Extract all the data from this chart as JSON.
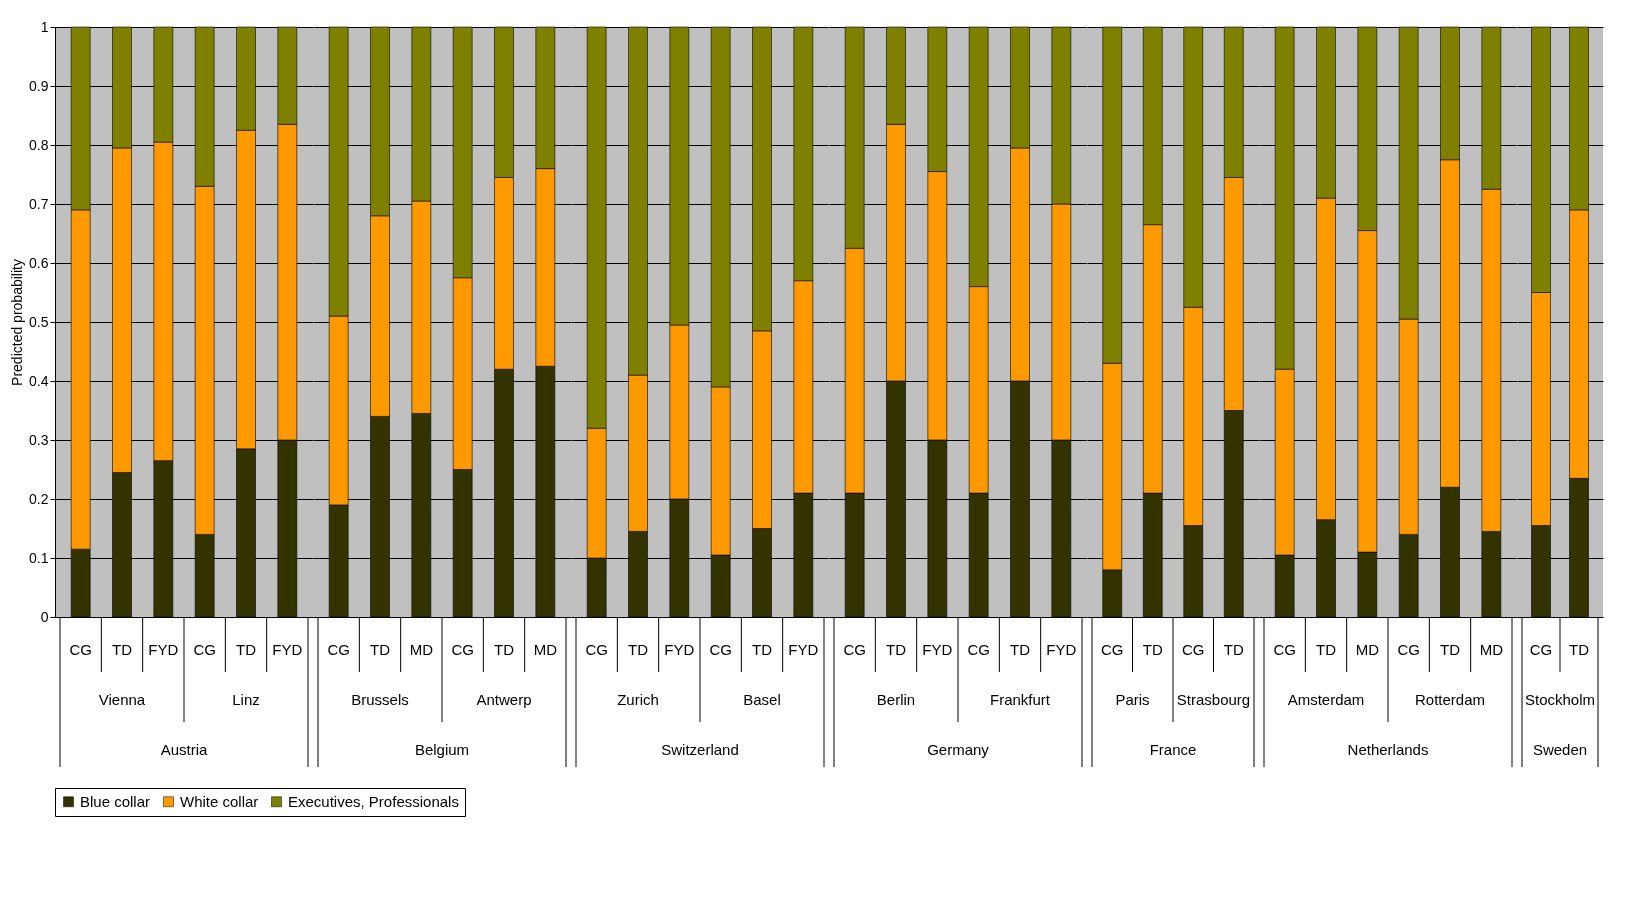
{
  "chart_data": [
    {
      "type": "bar",
      "stacked": true,
      "ylabel": "Predicted probability",
      "xlabel": "Austria",
      "annotations": [
        "Vienna",
        "Linz"
      ],
      "categories": [
        "CG",
        "TD",
        "FYD",
        "CG",
        "TD",
        "FYD"
      ],
      "ylim": [
        0,
        1
      ],
      "yticks": [
        0,
        0.1,
        0.2,
        0.3,
        0.4,
        0.5,
        0.6,
        0.7,
        0.8,
        0.9,
        1
      ],
      "grid": "y",
      "legend": "bottom",
      "series": [
        {
          "name": "Blue collar",
          "color": "#333300",
          "values": [
            0.115,
            0.245,
            0.265,
            0.14,
            0.285,
            0.3
          ]
        },
        {
          "name": "White collar",
          "color": "#ff9900",
          "values": [
            0.575,
            0.55,
            0.54,
            0.59,
            0.54,
            0.535
          ]
        },
        {
          "name": "Executives, Professionals",
          "color": "#808000",
          "values": [
            0.31,
            0.205,
            0.195,
            0.27,
            0.175,
            0.165
          ]
        }
      ]
    },
    {
      "type": "bar",
      "stacked": true,
      "xlabel": "Belgium",
      "annotations": [
        "Brussels",
        "Antwerp"
      ],
      "categories": [
        "CG",
        "TD",
        "MD",
        "CG",
        "TD",
        "MD"
      ],
      "ylim": [
        0,
        1
      ],
      "yticks": [
        0,
        0.1,
        0.2,
        0.3,
        0.4,
        0.5,
        0.6,
        0.7,
        0.8,
        0.9,
        1
      ],
      "grid": "y",
      "tick_labels": "x",
      "series": [
        {
          "name": "Blue collar",
          "color": "#333300",
          "values": [
            0.19,
            0.34,
            0.345,
            0.25,
            0.42,
            0.425
          ]
        },
        {
          "name": "White collar",
          "color": "#ff9900",
          "values": [
            0.32,
            0.34,
            0.36,
            0.325,
            0.325,
            0.335
          ]
        },
        {
          "name": "Executives, Professionals",
          "color": "#808000",
          "values": [
            0.49,
            0.32,
            0.295,
            0.425,
            0.255,
            0.24
          ]
        }
      ]
    },
    {
      "type": "bar",
      "stacked": true,
      "xlabel": "Switzerland",
      "annotations": [
        "Zurich",
        "Basel"
      ],
      "categories": [
        "CG",
        "TD",
        "FYD",
        "CG",
        "TD",
        "FYD"
      ],
      "ylim": [
        0,
        1
      ],
      "yticks": [
        0,
        0.1,
        0.2,
        0.3,
        0.4,
        0.5,
        0.6,
        0.7,
        0.8,
        0.9,
        1
      ],
      "grid": "y",
      "tick_labels": "x",
      "series": [
        {
          "name": "Blue collar",
          "color": "#333300",
          "values": [
            0.1,
            0.145,
            0.2,
            0.105,
            0.15,
            0.21
          ]
        },
        {
          "name": "White collar",
          "color": "#ff9900",
          "values": [
            0.22,
            0.265,
            0.295,
            0.285,
            0.335,
            0.36
          ]
        },
        {
          "name": "Executives, Professionals",
          "color": "#808000",
          "values": [
            0.68,
            0.59,
            0.505,
            0.61,
            0.515,
            0.43
          ]
        }
      ]
    },
    {
      "type": "bar",
      "stacked": true,
      "xlabel": "Germany",
      "annotations": [
        "Berlin",
        "Frankfurt"
      ],
      "categories": [
        "CG",
        "TD",
        "FYD",
        "CG",
        "TD",
        "FYD"
      ],
      "ylim": [
        0,
        1
      ],
      "yticks": [
        0,
        0.1,
        0.2,
        0.3,
        0.4,
        0.5,
        0.6,
        0.7,
        0.8,
        0.9,
        1
      ],
      "grid": "y",
      "tick_labels": "x",
      "series": [
        {
          "name": "Blue collar",
          "color": "#333300",
          "values": [
            0.21,
            0.4,
            0.3,
            0.21,
            0.4,
            0.3
          ]
        },
        {
          "name": "White collar",
          "color": "#ff9900",
          "values": [
            0.415,
            0.435,
            0.455,
            0.35,
            0.395,
            0.4
          ]
        },
        {
          "name": "Executives, Professionals",
          "color": "#808000",
          "values": [
            0.375,
            0.165,
            0.245,
            0.44,
            0.205,
            0.3
          ]
        }
      ]
    },
    {
      "type": "bar",
      "stacked": true,
      "xlabel": "France",
      "annotations": [
        "Paris",
        "Strasbourg"
      ],
      "categories": [
        "CG",
        "TD",
        "CG",
        "TD"
      ],
      "ylim": [
        0,
        1
      ],
      "yticks": [
        0,
        0.1,
        0.2,
        0.3,
        0.4,
        0.5,
        0.6,
        0.7,
        0.8,
        0.9,
        1
      ],
      "grid": "y",
      "tick_labels": "x",
      "series": [
        {
          "name": "Blue collar",
          "color": "#333300",
          "values": [
            0.08,
            0.21,
            0.155,
            0.35
          ]
        },
        {
          "name": "White collar",
          "color": "#ff9900",
          "values": [
            0.35,
            0.455,
            0.37,
            0.395
          ]
        },
        {
          "name": "Executives, Professionals",
          "color": "#808000",
          "values": [
            0.57,
            0.335,
            0.475,
            0.255
          ]
        }
      ]
    },
    {
      "type": "bar",
      "stacked": true,
      "xlabel": "Netherlands",
      "annotations": [
        "Amsterdam",
        "Rotterdam"
      ],
      "categories": [
        "CG",
        "TD",
        "MD",
        "CG",
        "TD",
        "MD"
      ],
      "ylim": [
        0,
        1
      ],
      "yticks": [
        0,
        0.1,
        0.2,
        0.3,
        0.4,
        0.5,
        0.6,
        0.7,
        0.8,
        0.9,
        1
      ],
      "grid": "y",
      "tick_labels": "x",
      "series": [
        {
          "name": "Blue collar",
          "color": "#333300",
          "values": [
            0.105,
            0.165,
            0.11,
            0.14,
            0.22,
            0.145
          ]
        },
        {
          "name": "White collar",
          "color": "#ff9900",
          "values": [
            0.315,
            0.545,
            0.545,
            0.365,
            0.555,
            0.58
          ]
        },
        {
          "name": "Executives, Professionals",
          "color": "#808000",
          "values": [
            0.58,
            0.29,
            0.345,
            0.495,
            0.225,
            0.275
          ]
        }
      ]
    },
    {
      "type": "bar",
      "stacked": true,
      "xlabel": "Sweden",
      "annotations": [
        "Stockholm"
      ],
      "categories": [
        "CG",
        "TD"
      ],
      "ylim": [
        0,
        1
      ],
      "yticks": [
        0,
        0.1,
        0.2,
        0.3,
        0.4,
        0.5,
        0.6,
        0.7,
        0.8,
        0.9,
        1
      ],
      "grid": "y",
      "tick_labels": "x",
      "series": [
        {
          "name": "Blue collar",
          "color": "#333300",
          "values": [
            0.155,
            0.235
          ]
        },
        {
          "name": "White collar",
          "color": "#ff9900",
          "values": [
            0.395,
            0.455
          ]
        },
        {
          "name": "Executives, Professionals",
          "color": "#808000",
          "values": [
            0.45,
            0.31
          ]
        }
      ]
    }
  ]
}
